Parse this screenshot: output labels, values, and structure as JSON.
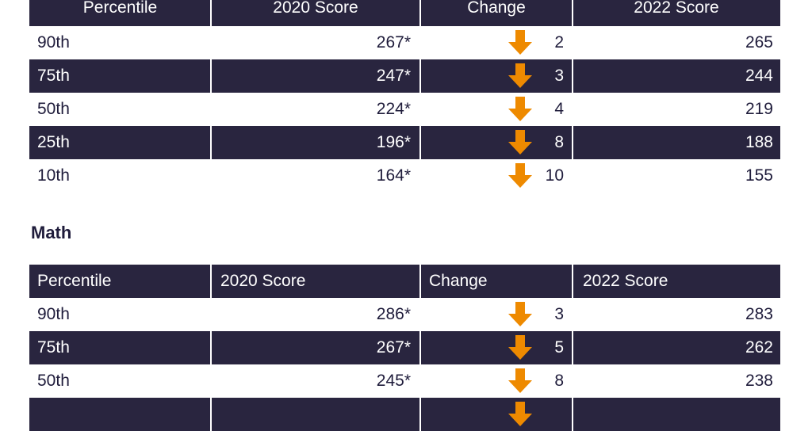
{
  "colors": {
    "header_bg": "#29253f",
    "arrow": "#ee8a00",
    "text": "#1f1c3b"
  },
  "table1": {
    "headers": [
      "Percentile",
      "2020 Score",
      "Change",
      "2022 Score"
    ],
    "rows": [
      {
        "percentile": "90th",
        "score2020": "267*",
        "change": "2",
        "score2022": "265"
      },
      {
        "percentile": "75th",
        "score2020": "247*",
        "change": "3",
        "score2022": "244"
      },
      {
        "percentile": "50th",
        "score2020": "224*",
        "change": "4",
        "score2022": "219"
      },
      {
        "percentile": "25th",
        "score2020": "196*",
        "change": "8",
        "score2022": "188"
      },
      {
        "percentile": "10th",
        "score2020": "164*",
        "change": "10",
        "score2022": "155"
      }
    ]
  },
  "math": {
    "title": "Math",
    "headers": [
      "Percentile",
      "2020 Score",
      "Change",
      "2022 Score"
    ],
    "rows": [
      {
        "percentile": "90th",
        "score2020": "286*",
        "change": "3",
        "score2022": "283"
      },
      {
        "percentile": "75th",
        "score2020": "267*",
        "change": "5",
        "score2022": "262"
      },
      {
        "percentile": "50th",
        "score2020": "245*",
        "change": "8",
        "score2022": "238"
      },
      {
        "percentile": "",
        "score2020": "",
        "change": "",
        "score2022": ""
      }
    ]
  }
}
